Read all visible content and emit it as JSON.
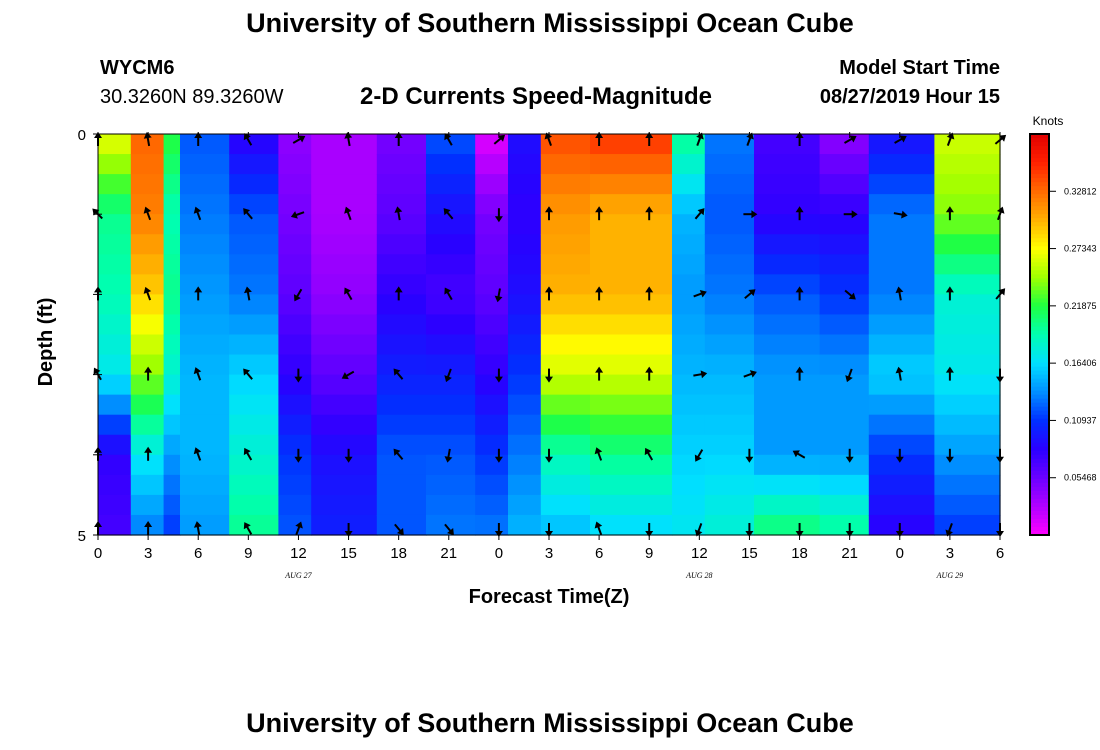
{
  "header": {
    "title": "University of Southern Mississippi Ocean Cube",
    "station": "WYCM6",
    "coords": "30.3260N 89.3260W",
    "plot_title": "2-D Currents Speed-Magnitude",
    "model_start_label": "Model Start Time",
    "model_start_value": "08/27/2019 Hour 15"
  },
  "footer": {
    "title": "University of Southern Mississippi Ocean Cube"
  },
  "colors": {
    "palette": [
      "#ff00ff",
      "#b000ff",
      "#6a00ff",
      "#2a00ff",
      "#0030ff",
      "#0090ff",
      "#00e0ff",
      "#00ffb0",
      "#20ff40",
      "#a0ff00",
      "#ffff00",
      "#ffb000",
      "#ff6a00",
      "#ff2000",
      "#e00000"
    ]
  },
  "chart_data": {
    "type": "heatmap",
    "title": "2-D Currents Speed-Magnitude",
    "xlabel": "Forecast Time(Z)",
    "ylabel": "Depth (ft)",
    "ylim": [
      0,
      5
    ],
    "y_ticks": [
      "0",
      "5"
    ],
    "x_ticks": [
      "0",
      "3",
      "6",
      "9",
      "12",
      "15",
      "18",
      "21",
      "0",
      "3",
      "6",
      "9",
      "12",
      "15",
      "18",
      "21",
      "0",
      "3",
      "6"
    ],
    "date_labels": [
      {
        "text": "AUG 27",
        "x_index": 12
      },
      {
        "text": "AUG 28",
        "x_index": 36
      },
      {
        "text": "AUG 29",
        "x_index": 51
      }
    ],
    "colorbar": {
      "title": "Knots",
      "ticks": [
        "0.05468",
        "0.10937",
        "0.16406",
        "0.21875",
        "0.27343",
        "0.32812"
      ],
      "tick_values": [
        0.05468,
        0.10937,
        0.16406,
        0.21875,
        0.27343,
        0.32812
      ],
      "range": [
        0,
        0.3828
      ]
    },
    "hours": 55,
    "depth_rows": 5,
    "segments": [
      {
        "from": 0,
        "to": 2,
        "speeds": [
          0.27,
          0.2,
          0.19,
          0.17,
          0.08,
          0.07
        ]
      },
      {
        "from": 2,
        "to": 4,
        "speeds": [
          0.33,
          0.32,
          0.29,
          0.24,
          0.17,
          0.13
        ]
      },
      {
        "from": 4,
        "to": 5,
        "speeds": [
          0.22,
          0.19,
          0.2,
          0.18,
          0.14,
          0.11
        ]
      },
      {
        "from": 5,
        "to": 8,
        "speeds": [
          0.12,
          0.13,
          0.14,
          0.15,
          0.15,
          0.14
        ]
      },
      {
        "from": 8,
        "to": 11,
        "speeds": [
          0.08,
          0.12,
          0.13,
          0.16,
          0.18,
          0.2
        ]
      },
      {
        "from": 11,
        "to": 13,
        "speeds": [
          0.04,
          0.05,
          0.06,
          0.08,
          0.11,
          0.12
        ]
      },
      {
        "from": 13,
        "to": 17,
        "speeds": [
          0.03,
          0.03,
          0.04,
          0.06,
          0.09,
          0.1
        ]
      },
      {
        "from": 17,
        "to": 20,
        "speeds": [
          0.05,
          0.06,
          0.08,
          0.1,
          0.12,
          0.12
        ]
      },
      {
        "from": 20,
        "to": 23,
        "speeds": [
          0.12,
          0.09,
          0.07,
          0.1,
          0.12,
          0.13
        ]
      },
      {
        "from": 23,
        "to": 25,
        "speeds": [
          0.01,
          0.05,
          0.06,
          0.08,
          0.11,
          0.13
        ]
      },
      {
        "from": 25,
        "to": 27,
        "speeds": [
          0.09,
          0.08,
          0.09,
          0.11,
          0.13,
          0.15
        ]
      },
      {
        "from": 27,
        "to": 30,
        "speeds": [
          0.34,
          0.31,
          0.3,
          0.26,
          0.19,
          0.15
        ]
      },
      {
        "from": 30,
        "to": 35,
        "speeds": [
          0.35,
          0.3,
          0.3,
          0.26,
          0.2,
          0.16
        ]
      },
      {
        "from": 35,
        "to": 37,
        "speeds": [
          0.2,
          0.15,
          0.14,
          0.15,
          0.16,
          0.17
        ]
      },
      {
        "from": 37,
        "to": 40,
        "speeds": [
          0.13,
          0.12,
          0.13,
          0.15,
          0.16,
          0.18
        ]
      },
      {
        "from": 40,
        "to": 44,
        "speeds": [
          0.07,
          0.08,
          0.12,
          0.14,
          0.14,
          0.21
        ]
      },
      {
        "from": 44,
        "to": 47,
        "speeds": [
          0.04,
          0.08,
          0.11,
          0.14,
          0.14,
          0.2
        ]
      },
      {
        "from": 47,
        "to": 51,
        "speeds": [
          0.09,
          0.13,
          0.13,
          0.16,
          0.11,
          0.08
        ]
      },
      {
        "from": 51,
        "to": 55,
        "speeds": [
          0.26,
          0.24,
          0.18,
          0.17,
          0.14,
          0.11
        ]
      }
    ],
    "arrows": {
      "columns": [
        0,
        3,
        6,
        9,
        12,
        15,
        18,
        21,
        24,
        27,
        30,
        33,
        36,
        39,
        42,
        45,
        48,
        51,
        54
      ],
      "depth_levels": [
        0,
        1,
        2,
        3,
        4,
        5
      ],
      "direction_deg": [
        [
          180,
          135,
          180,
          150,
          180,
          180
        ],
        [
          170,
          160,
          160,
          180,
          180,
          180
        ],
        [
          180,
          160,
          180,
          160,
          160,
          170
        ],
        [
          150,
          140,
          170,
          140,
          150,
          150
        ],
        [
          240,
          70,
          30,
          0,
          0,
          200
        ],
        [
          170,
          160,
          150,
          60,
          0,
          0
        ],
        [
          180,
          170,
          180,
          140,
          140,
          320
        ],
        [
          150,
          140,
          150,
          20,
          10,
          320
        ],
        [
          230,
          0,
          10,
          0,
          0,
          0
        ],
        [
          160,
          180,
          180,
          0,
          0,
          0
        ],
        [
          180,
          180,
          180,
          180,
          160,
          160
        ],
        [
          180,
          180,
          180,
          180,
          150,
          0
        ],
        [
          200,
          220,
          250,
          260,
          30,
          20
        ],
        [
          200,
          270,
          230,
          250,
          0,
          0
        ],
        [
          180,
          180,
          180,
          180,
          120,
          0
        ],
        [
          240,
          270,
          310,
          20,
          0,
          0
        ],
        [
          240,
          280,
          170,
          170,
          0,
          0
        ],
        [
          200,
          180,
          180,
          180,
          0,
          20
        ],
        [
          230,
          200,
          220,
          0,
          0,
          0
        ]
      ]
    }
  }
}
